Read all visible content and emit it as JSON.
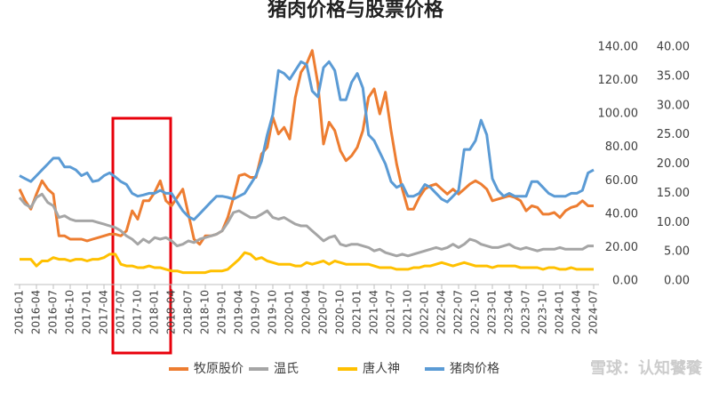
{
  "chart_data": {
    "type": "line",
    "title": "猪肉价格与股票价格",
    "watermark": "雪球：认知饕餮",
    "categories": [
      "2016-01",
      null,
      null,
      "2016-04",
      null,
      null,
      "2016-07",
      null,
      null,
      "2016-10",
      null,
      null,
      "2017-01",
      null,
      null,
      "2017-04",
      null,
      null,
      "2017-07",
      null,
      null,
      "2017-10",
      null,
      null,
      "2018-01",
      null,
      null,
      "2018-04",
      null,
      null,
      "2018-07",
      null,
      null,
      "2018-10",
      null,
      null,
      "2019-01",
      null,
      null,
      "2019-04",
      null,
      null,
      "2019-07",
      null,
      null,
      "2019-10",
      null,
      null,
      "2020-01",
      null,
      null,
      "2020-04",
      null,
      null,
      "2020-07",
      null,
      null,
      "2020-10",
      null,
      null,
      "2021-01",
      null,
      null,
      "2021-04",
      null,
      null,
      "2021-07",
      null,
      null,
      "2021-10",
      null,
      null,
      "2022-01",
      null,
      null,
      "2022-04",
      null,
      null,
      "2022-07",
      null,
      null,
      "2022-10",
      null,
      null,
      "2023-01",
      null,
      null,
      "2023-04",
      null,
      null,
      "2023-07",
      null,
      null,
      "2023-10",
      null,
      null,
      "2024-01",
      null,
      null,
      "2024-04",
      null,
      null,
      "2024-07"
    ],
    "series": [
      {
        "name": "牧原股价",
        "color": "#ed7d31",
        "values": [
          55,
          48,
          43,
          52,
          60,
          55,
          52,
          27,
          27,
          25,
          25,
          25,
          24,
          25,
          26,
          27,
          28,
          28,
          27,
          30,
          42,
          37,
          48,
          48,
          53,
          60,
          48,
          45,
          50,
          55,
          40,
          25,
          22,
          27,
          27,
          28,
          30,
          38,
          50,
          63,
          64,
          62,
          62,
          76,
          80,
          98,
          88,
          92,
          85,
          110,
          125,
          130,
          138,
          118,
          82,
          95,
          90,
          78,
          72,
          75,
          80,
          90,
          110,
          115,
          100,
          113,
          90,
          70,
          55,
          43,
          43,
          50,
          55,
          57,
          58,
          55,
          52,
          55,
          52,
          55,
          58,
          60,
          58,
          55,
          48,
          49,
          50,
          51,
          50,
          48,
          42,
          45,
          44,
          40,
          40,
          41,
          38,
          42,
          44,
          45,
          48,
          45,
          45
        ]
      },
      {
        "name": "温氏",
        "color": "#a5a5a5",
        "values": [
          50,
          46,
          44,
          50,
          52,
          47,
          45,
          38,
          39,
          37,
          36,
          36,
          36,
          36,
          35,
          34,
          33,
          32,
          30,
          27,
          25,
          22,
          25,
          23,
          26,
          25,
          26,
          24,
          21,
          22,
          24,
          23,
          25,
          26,
          27,
          28,
          30,
          35,
          41,
          42,
          40,
          38,
          38,
          40,
          42,
          38,
          37,
          38,
          36,
          34,
          33,
          33,
          30,
          27,
          24,
          26,
          27,
          22,
          21,
          22,
          22,
          21,
          20,
          18,
          19,
          17,
          16,
          15,
          16,
          15,
          16,
          17,
          18,
          19,
          20,
          19,
          20,
          22,
          20,
          22,
          25,
          24,
          22,
          21,
          20,
          20,
          21,
          22,
          20,
          19,
          20,
          19,
          18,
          19,
          19,
          19,
          20,
          19,
          19,
          19,
          19,
          21,
          21
        ]
      },
      {
        "name": "唐人神",
        "color": "#ffc000",
        "values": [
          13,
          13,
          13,
          9,
          12,
          12,
          14,
          13,
          13,
          12,
          13,
          13,
          12,
          13,
          13,
          14,
          16,
          16,
          10,
          9,
          9,
          8,
          8,
          9,
          8,
          8,
          7,
          6,
          6,
          5,
          5,
          5,
          5,
          5,
          6,
          6,
          6,
          7,
          10,
          13,
          17,
          16,
          13,
          14,
          12,
          11,
          10,
          10,
          10,
          9,
          9,
          11,
          10,
          11,
          12,
          10,
          12,
          11,
          10,
          10,
          10,
          10,
          10,
          9,
          8,
          8,
          8,
          7,
          7,
          7,
          8,
          8,
          9,
          9,
          10,
          11,
          10,
          9,
          10,
          11,
          10,
          9,
          9,
          9,
          8,
          9,
          9,
          9,
          9,
          8,
          8,
          8,
          8,
          7,
          8,
          8,
          7,
          7,
          8,
          7,
          7,
          7,
          7
        ]
      },
      {
        "name": "猪肉价格",
        "color": "#5b9bd5",
        "axis": "y2",
        "values": [
          18,
          17.5,
          17,
          18,
          19,
          20,
          21,
          21,
          19.5,
          19.5,
          19,
          18,
          18.5,
          17,
          17.2,
          18,
          18.5,
          17.8,
          17,
          16.5,
          15,
          14.5,
          14.7,
          15,
          15,
          15.5,
          15,
          15,
          13.5,
          12,
          11,
          10.5,
          11.5,
          12.5,
          13.5,
          14.5,
          14.5,
          14.3,
          14,
          14.5,
          15,
          16.5,
          18,
          20.5,
          25,
          28.5,
          36,
          35.5,
          34.5,
          36,
          37.5,
          37,
          32.5,
          31.5,
          36.5,
          37.5,
          36,
          31,
          31,
          34,
          35.5,
          33,
          25,
          24,
          22,
          20,
          17,
          16,
          16.5,
          14.5,
          14.5,
          15,
          16.5,
          16,
          15,
          14,
          13.5,
          14.5,
          15.5,
          22.5,
          22.5,
          24,
          27.5,
          25,
          17.5,
          15.5,
          14.5,
          15,
          14.5,
          14.5,
          14.5,
          17,
          17,
          16,
          15,
          14.5,
          14.5,
          14.5,
          15,
          15,
          15.5,
          18.5,
          19
        ]
      }
    ],
    "ylim": [
      0,
      140
    ],
    "yticks": [
      {
        "value": 0,
        "label": "0.00"
      },
      {
        "value": 20,
        "label": "20.00"
      },
      {
        "value": 40,
        "label": "40.00"
      },
      {
        "value": 60,
        "label": "60.00"
      },
      {
        "value": 80,
        "label": "80.00"
      },
      {
        "value": 100,
        "label": "100.00"
      },
      {
        "value": 120,
        "label": "120.00"
      },
      {
        "value": 140,
        "label": "140.00"
      }
    ],
    "y2lim": [
      0,
      40
    ],
    "y2ticks": [
      {
        "value": 0,
        "label": "0.00"
      },
      {
        "value": 5,
        "label": "5.00"
      },
      {
        "value": 10,
        "label": "10.00"
      },
      {
        "value": 15,
        "label": "15.00"
      },
      {
        "value": 20,
        "label": "20.00"
      },
      {
        "value": 25,
        "label": "25.00"
      },
      {
        "value": 30,
        "label": "30.00"
      },
      {
        "value": 35,
        "label": "35.00"
      },
      {
        "value": 40,
        "label": "40.00"
      }
    ],
    "grid": false,
    "legend": "bottom"
  }
}
